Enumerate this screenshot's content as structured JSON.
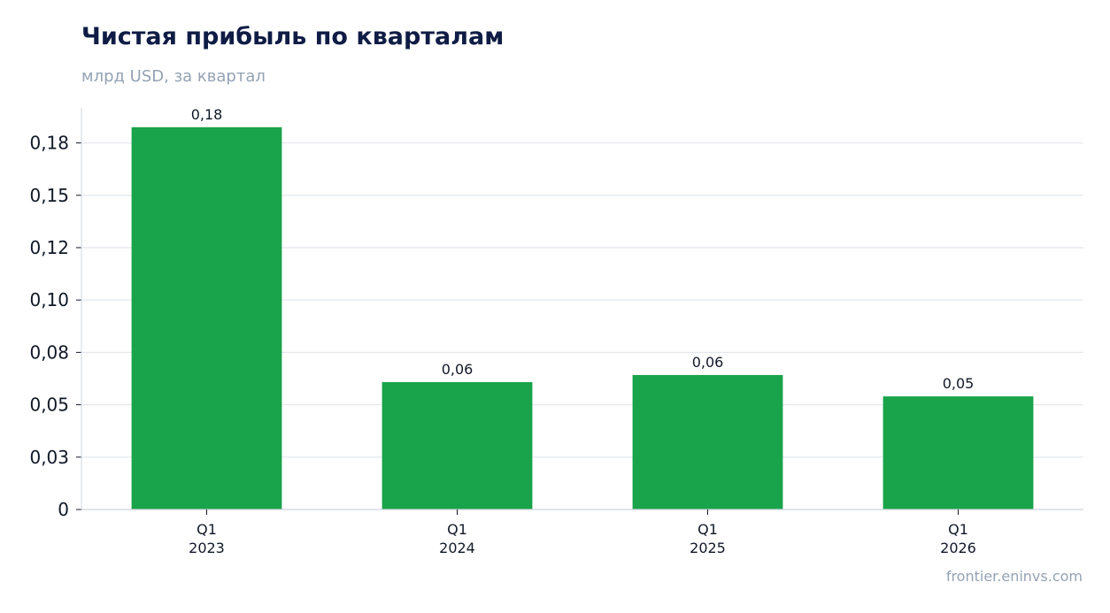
{
  "title": "Чистая прибыль по кварталам",
  "subtitle": "млрд USD, за квартал",
  "source": "frontier.eninvs.com",
  "colors": {
    "bar": "#19a34a",
    "grid": "#e3e7ee",
    "axis": "#cfd4dc",
    "title": "#0f1c45",
    "muted": "#94a2b4"
  },
  "chart_data": {
    "type": "bar",
    "title": "Чистая прибыль по кварталам",
    "subtitle": "млрд USD, за квартал",
    "categories": [
      [
        "Q1",
        "2023"
      ],
      [
        "Q1",
        "2024"
      ],
      [
        "Q1",
        "2025"
      ],
      [
        "Q1",
        "2026"
      ]
    ],
    "values": [
      0.1825,
      0.0608,
      0.0642,
      0.054
    ],
    "data_labels": [
      "0,18",
      "0,06",
      "0,06",
      "0,05"
    ],
    "y_ticks": [
      0,
      0.025,
      0.05,
      0.075,
      0.1,
      0.125,
      0.15,
      0.175
    ],
    "y_tick_labels": [
      "0",
      "0,03",
      "0,05",
      "0,08",
      "0,10",
      "0,12",
      "0,15",
      "0,18"
    ],
    "ylim": [
      0,
      0.1917
    ],
    "grid": true,
    "legend": false
  }
}
